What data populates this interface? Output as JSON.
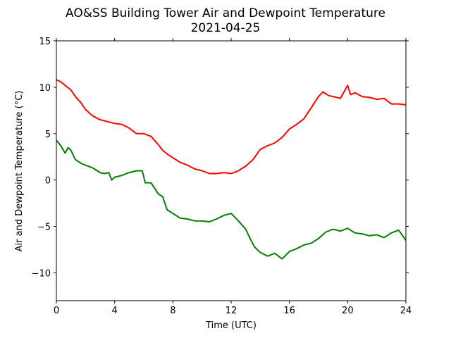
{
  "chart_data": {
    "type": "line",
    "title": "AO&SS Building Tower Air and Dewpoint Temperature",
    "subtitle": "2021-04-25",
    "xlabel": "Time (UTC)",
    "ylabel": "Air and Dewpoint Temperature (°C)",
    "xlim": [
      0,
      24
    ],
    "ylim": [
      -13,
      15
    ],
    "xticks": [
      0,
      4,
      8,
      12,
      16,
      20,
      24
    ],
    "yticks": [
      -10,
      -5,
      0,
      5,
      10,
      15
    ],
    "grid": false,
    "legend": "none",
    "series": [
      {
        "color": "#ff0000",
        "x": [
          0,
          0.3,
          0.6,
          1.0,
          1.3,
          1.7,
          2.0,
          2.5,
          3.0,
          3.5,
          4.0,
          4.5,
          5.0,
          5.5,
          6.0,
          6.5,
          7.0,
          7.3,
          7.6,
          8.0,
          8.5,
          9.0,
          9.5,
          10.0,
          10.5,
          11.0,
          11.5,
          12.0,
          12.5,
          13.0,
          13.5,
          14.0,
          14.5,
          15.0,
          15.5,
          16.0,
          16.5,
          17.0,
          17.5,
          18.0,
          18.3,
          18.7,
          19.0,
          19.5,
          20.0,
          20.2,
          20.5,
          21.0,
          21.5,
          22.0,
          22.5,
          23.0,
          23.5,
          24.0
        ],
        "y": [
          10.8,
          10.6,
          10.2,
          9.7,
          9.0,
          8.3,
          7.6,
          6.9,
          6.5,
          6.3,
          6.1,
          6.0,
          5.6,
          5.0,
          5.0,
          4.7,
          3.8,
          3.2,
          2.8,
          2.4,
          1.9,
          1.6,
          1.2,
          1.0,
          0.7,
          0.7,
          0.8,
          0.7,
          1.0,
          1.5,
          2.2,
          3.3,
          3.7,
          4.0,
          4.6,
          5.5,
          6.0,
          6.6,
          7.8,
          9.0,
          9.5,
          9.1,
          9.0,
          8.8,
          10.2,
          9.2,
          9.4,
          9.0,
          8.9,
          8.7,
          8.8,
          8.2,
          8.2,
          8.1
        ]
      },
      {
        "color": "#008000",
        "x": [
          0,
          0.3,
          0.6,
          0.8,
          1.0,
          1.3,
          1.7,
          2.0,
          2.5,
          3.0,
          3.3,
          3.6,
          3.8,
          4.0,
          4.5,
          5.0,
          5.5,
          5.9,
          6.1,
          6.5,
          7.0,
          7.3,
          7.6,
          8.0,
          8.5,
          9.0,
          9.5,
          10.0,
          10.5,
          11.0,
          11.5,
          12.0,
          12.5,
          13.0,
          13.3,
          13.6,
          14.0,
          14.5,
          15.0,
          15.5,
          16.0,
          16.5,
          17.0,
          17.5,
          18.0,
          18.5,
          19.0,
          19.5,
          20.0,
          20.5,
          21.0,
          21.5,
          22.0,
          22.5,
          23.0,
          23.5,
          24.0
        ],
        "y": [
          4.3,
          3.7,
          2.9,
          3.5,
          3.2,
          2.2,
          1.8,
          1.6,
          1.3,
          0.8,
          0.7,
          0.8,
          0.0,
          0.3,
          0.5,
          0.8,
          1.0,
          1.0,
          -0.3,
          -0.3,
          -1.5,
          -1.8,
          -3.2,
          -3.6,
          -4.1,
          -4.2,
          -4.4,
          -4.4,
          -4.5,
          -4.2,
          -3.8,
          -3.6,
          -4.4,
          -5.3,
          -6.3,
          -7.2,
          -7.8,
          -8.2,
          -7.9,
          -8.5,
          -7.7,
          -7.4,
          -7.0,
          -6.8,
          -6.3,
          -5.6,
          -5.3,
          -5.5,
          -5.2,
          -5.7,
          -5.8,
          -6.0,
          -5.9,
          -6.2,
          -5.7,
          -5.4,
          -6.5
        ]
      }
    ]
  }
}
